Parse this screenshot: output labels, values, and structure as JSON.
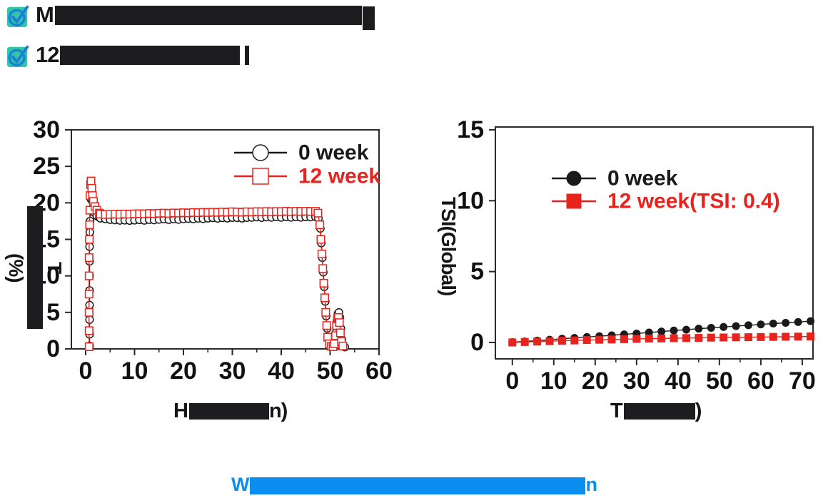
{
  "header": {
    "bullets": [
      {
        "icon": "check-icon",
        "prefix": "M",
        "redacted": true
      },
      {
        "icon": "check-icon",
        "prefix": "12",
        "redacted": true
      }
    ]
  },
  "icon_colors": {
    "box_teal": "#2fc7a7",
    "check_blue": "#1e7fd6"
  },
  "accent_colors": {
    "series_black": "#1a1a1a",
    "series_red": "#e8231d",
    "caption_blue": "#0a8ff0",
    "redaction": "#1d1d1f"
  },
  "caption": {
    "prefix": "W",
    "suffix": "n",
    "redacted": true,
    "color": "#0a8ff0"
  },
  "chart_data": [
    {
      "type": "line",
      "title": "",
      "ylabel": {
        "prefix": "T",
        "suffix": "(%)",
        "redacted": true
      },
      "xlabel": {
        "prefix": "H",
        "suffix": "n)",
        "redacted": true
      },
      "xlim": [
        -2.92,
        60
      ],
      "ylim": [
        0,
        30
      ],
      "xticks": [
        0,
        10,
        20,
        30,
        40,
        50,
        60
      ],
      "xminor": [
        5,
        15,
        25,
        35,
        45,
        55
      ],
      "yticks": [
        0,
        5,
        10,
        15,
        20,
        25,
        30
      ],
      "grid": false,
      "legend_position": "top-right-inside",
      "series": [
        {
          "name": "0 week",
          "color": "#1a1a1a",
          "marker": "circle-open",
          "points": [
            [
              0.8,
              0.4
            ],
            [
              0.8,
              2
            ],
            [
              0.8,
              4
            ],
            [
              0.8,
              6
            ],
            [
              0.8,
              8
            ],
            [
              0.8,
              10
            ],
            [
              0.8,
              12
            ],
            [
              0.8,
              14
            ],
            [
              0.85,
              16
            ],
            [
              0.9,
              17.5
            ],
            [
              1.0,
              19
            ],
            [
              1.1,
              20.5
            ],
            [
              1.2,
              21.3
            ],
            [
              1.4,
              20.2
            ],
            [
              1.6,
              19.2
            ],
            [
              1.9,
              18.6
            ],
            [
              2.3,
              18.2
            ],
            [
              2.8,
              18.0
            ],
            [
              3,
              17.9
            ],
            [
              4,
              17.8
            ],
            [
              5,
              17.7
            ],
            [
              6,
              17.65
            ],
            [
              7,
              17.6
            ],
            [
              8,
              17.62
            ],
            [
              9,
              17.58
            ],
            [
              10,
              17.62
            ],
            [
              11,
              17.68
            ],
            [
              12,
              17.6
            ],
            [
              13,
              17.7
            ],
            [
              14,
              17.65
            ],
            [
              15,
              17.72
            ],
            [
              16,
              17.78
            ],
            [
              17,
              17.7
            ],
            [
              18,
              17.78
            ],
            [
              19,
              17.72
            ],
            [
              20,
              17.8
            ],
            [
              21,
              17.85
            ],
            [
              22,
              17.8
            ],
            [
              23,
              17.88
            ],
            [
              24,
              17.82
            ],
            [
              25,
              17.9
            ],
            [
              26,
              17.95
            ],
            [
              27,
              17.88
            ],
            [
              28,
              17.95
            ],
            [
              29,
              17.9
            ],
            [
              30,
              17.98
            ],
            [
              31,
              17.95
            ],
            [
              32,
              17.9
            ],
            [
              33,
              17.98
            ],
            [
              34,
              18.0
            ],
            [
              35,
              18.05
            ],
            [
              36,
              17.98
            ],
            [
              37,
              18.05
            ],
            [
              38,
              18.0
            ],
            [
              39,
              18.08
            ],
            [
              40,
              18.0
            ],
            [
              41,
              18.08
            ],
            [
              42,
              18.02
            ],
            [
              43,
              18.08
            ],
            [
              44,
              18.02
            ],
            [
              45,
              18.08
            ],
            [
              46,
              18.05
            ],
            [
              47,
              18.1
            ],
            [
              47.6,
              17.9
            ],
            [
              48.0,
              16.5
            ],
            [
              48.2,
              14.5
            ],
            [
              48.4,
              12.5
            ],
            [
              48.6,
              10.5
            ],
            [
              48.8,
              8.5
            ],
            [
              49.0,
              6.5
            ],
            [
              49.2,
              4.5
            ],
            [
              49.4,
              2.8
            ],
            [
              49.6,
              1.4
            ],
            [
              49.9,
              0.6
            ],
            [
              50.3,
              0.35
            ],
            [
              50.7,
              0.3
            ],
            [
              51.0,
              0.8
            ],
            [
              51.2,
              2.2
            ],
            [
              51.4,
              3.8
            ],
            [
              51.6,
              4.8
            ],
            [
              51.8,
              5.0
            ],
            [
              52.0,
              4.3
            ],
            [
              52.2,
              2.8
            ],
            [
              52.4,
              1.3
            ],
            [
              52.7,
              0.5
            ],
            [
              53.0,
              0.25
            ]
          ]
        },
        {
          "name": "12 week",
          "color": "#e8231d",
          "marker": "square-open",
          "points": [
            [
              0.7,
              0.3
            ],
            [
              0.7,
              2.5
            ],
            [
              0.7,
              5
            ],
            [
              0.7,
              7.5
            ],
            [
              0.7,
              10
            ],
            [
              0.7,
              12.5
            ],
            [
              0.75,
              15
            ],
            [
              0.8,
              17
            ],
            [
              0.85,
              19
            ],
            [
              0.9,
              21
            ],
            [
              1.0,
              22.5
            ],
            [
              1.1,
              23
            ],
            [
              1.25,
              22
            ],
            [
              1.4,
              21
            ],
            [
              1.6,
              20.2
            ],
            [
              1.9,
              19.5
            ],
            [
              2.3,
              19.0
            ],
            [
              2.8,
              18.6
            ],
            [
              3,
              18.45
            ],
            [
              4,
              18.4
            ],
            [
              5,
              18.42
            ],
            [
              6,
              18.45
            ],
            [
              7,
              18.42
            ],
            [
              8,
              18.48
            ],
            [
              9,
              18.45
            ],
            [
              10,
              18.5
            ],
            [
              11,
              18.52
            ],
            [
              12,
              18.5
            ],
            [
              13,
              18.55
            ],
            [
              14,
              18.52
            ],
            [
              15,
              18.58
            ],
            [
              16,
              18.6
            ],
            [
              17,
              18.56
            ],
            [
              18,
              18.62
            ],
            [
              19,
              18.6
            ],
            [
              20,
              18.65
            ],
            [
              21,
              18.62
            ],
            [
              22,
              18.68
            ],
            [
              23,
              18.65
            ],
            [
              24,
              18.7
            ],
            [
              25,
              18.68
            ],
            [
              26,
              18.72
            ],
            [
              27,
              18.7
            ],
            [
              28,
              18.75
            ],
            [
              29,
              18.72
            ],
            [
              30,
              18.78
            ],
            [
              31,
              18.75
            ],
            [
              32,
              18.72
            ],
            [
              33,
              18.78
            ],
            [
              34,
              18.75
            ],
            [
              35,
              18.8
            ],
            [
              36,
              18.78
            ],
            [
              37,
              18.82
            ],
            [
              38,
              18.78
            ],
            [
              39,
              18.82
            ],
            [
              40,
              18.8
            ],
            [
              41,
              18.85
            ],
            [
              42,
              18.8
            ],
            [
              43,
              18.85
            ],
            [
              44,
              18.82
            ],
            [
              45,
              18.85
            ],
            [
              46,
              18.82
            ],
            [
              47,
              18.85
            ],
            [
              47.5,
              18.6
            ],
            [
              47.9,
              17
            ],
            [
              48.1,
              15
            ],
            [
              48.3,
              13
            ],
            [
              48.5,
              11
            ],
            [
              48.7,
              9
            ],
            [
              48.9,
              7
            ],
            [
              49.1,
              5
            ],
            [
              49.3,
              3.2
            ],
            [
              49.5,
              1.6
            ],
            [
              49.8,
              0.7
            ],
            [
              50.2,
              0.35
            ],
            [
              50.6,
              0.3
            ],
            [
              50.9,
              0.7
            ],
            [
              51.1,
              1.8
            ],
            [
              51.3,
              3.2
            ],
            [
              51.5,
              4.1
            ],
            [
              51.7,
              4.3
            ],
            [
              51.9,
              3.6
            ],
            [
              52.1,
              2.2
            ],
            [
              52.3,
              1.0
            ],
            [
              52.6,
              0.4
            ]
          ]
        }
      ]
    },
    {
      "type": "line",
      "title": "",
      "ylabel": {
        "text": "TSI(Global)",
        "redacted": false
      },
      "xlabel": {
        "prefix": "T",
        "suffix": ")",
        "redacted": true
      },
      "xlim": [
        -4.1,
        72.6
      ],
      "ylim": [
        -1.16,
        15.2
      ],
      "xticks": [
        0,
        10,
        20,
        30,
        40,
        50,
        60,
        70
      ],
      "xminor": [
        5,
        15,
        25,
        35,
        45,
        55,
        65
      ],
      "yticks": [
        0,
        5,
        10,
        15
      ],
      "grid": false,
      "legend_position": "top-left-inside",
      "series": [
        {
          "name": "0 week",
          "color": "#1a1a1a",
          "marker": "circle",
          "points": [
            [
              0,
              0.02
            ],
            [
              3,
              0.07
            ],
            [
              6,
              0.13
            ],
            [
              9,
              0.19
            ],
            [
              12,
              0.26
            ],
            [
              15,
              0.32
            ],
            [
              18,
              0.38
            ],
            [
              21,
              0.44
            ],
            [
              24,
              0.5
            ],
            [
              27,
              0.57
            ],
            [
              30,
              0.63
            ],
            [
              33,
              0.7
            ],
            [
              36,
              0.77
            ],
            [
              39,
              0.84
            ],
            [
              42,
              0.9
            ],
            [
              45,
              0.97
            ],
            [
              48,
              1.03
            ],
            [
              51,
              1.09
            ],
            [
              54,
              1.15
            ],
            [
              57,
              1.21
            ],
            [
              60,
              1.27
            ],
            [
              63,
              1.33
            ],
            [
              66,
              1.38
            ],
            [
              69,
              1.44
            ],
            [
              72,
              1.5
            ]
          ]
        },
        {
          "name": "12 week(TSI: 0.4)",
          "color": "#e8231d",
          "marker": "square",
          "points": [
            [
              0,
              0.0
            ],
            [
              3,
              0.03
            ],
            [
              6,
              0.06
            ],
            [
              9,
              0.09
            ],
            [
              12,
              0.12
            ],
            [
              15,
              0.14
            ],
            [
              18,
              0.17
            ],
            [
              21,
              0.19
            ],
            [
              24,
              0.21
            ],
            [
              27,
              0.23
            ],
            [
              30,
              0.25
            ],
            [
              33,
              0.27
            ],
            [
              36,
              0.28
            ],
            [
              39,
              0.3
            ],
            [
              42,
              0.31
            ],
            [
              45,
              0.32
            ],
            [
              48,
              0.34
            ],
            [
              51,
              0.35
            ],
            [
              54,
              0.36
            ],
            [
              57,
              0.37
            ],
            [
              60,
              0.38
            ],
            [
              63,
              0.39
            ],
            [
              66,
              0.4
            ],
            [
              69,
              0.41
            ],
            [
              72,
              0.42
            ]
          ]
        }
      ]
    }
  ]
}
